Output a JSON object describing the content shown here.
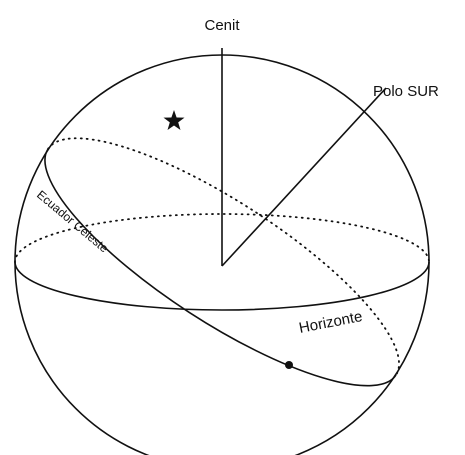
{
  "labels": {
    "zenith": "Cenit",
    "south_pole": "Polo SUR",
    "horizon": "Horizonte",
    "celestial_equator": "Ecuador Celeste"
  }
}
